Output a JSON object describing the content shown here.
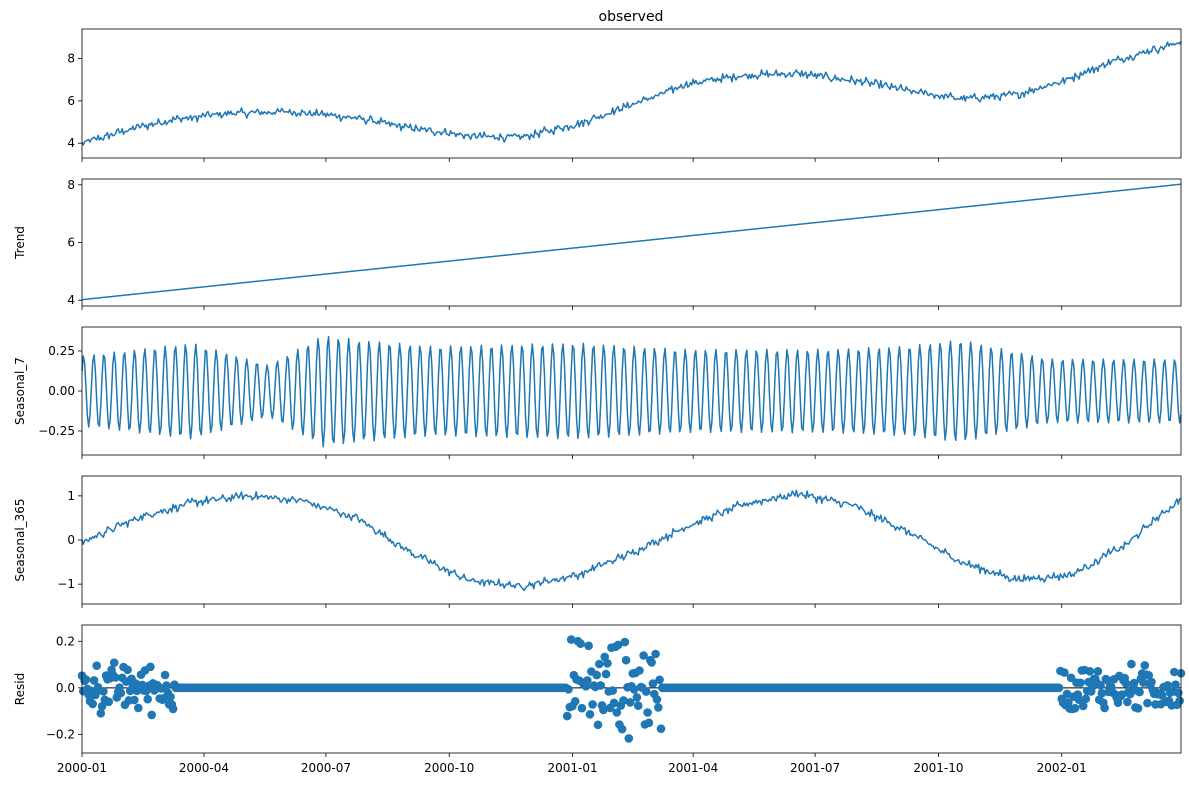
{
  "figure_title": "observed",
  "chart_data": [
    {
      "type": "line",
      "panel": "observed",
      "title": "observed",
      "ylabel": "",
      "ylim": [
        3.3,
        9.4
      ],
      "yticks": [
        4,
        6,
        8
      ],
      "color": "#1f77b4",
      "series": [
        {
          "x_start": "2000-01-01",
          "x_end": "2002-03-31",
          "keypoints": [
            [
              0.0,
              4.0
            ],
            [
              0.04,
              4.6
            ],
            [
              0.08,
              5.1
            ],
            [
              0.13,
              5.4
            ],
            [
              0.19,
              5.5
            ],
            [
              0.25,
              5.2
            ],
            [
              0.3,
              4.7
            ],
            [
              0.36,
              4.3
            ],
            [
              0.4,
              4.3
            ],
            [
              0.45,
              4.9
            ],
            [
              0.5,
              5.8
            ],
            [
              0.55,
              6.8
            ],
            [
              0.6,
              7.2
            ],
            [
              0.65,
              7.3
            ],
            [
              0.71,
              6.9
            ],
            [
              0.76,
              6.4
            ],
            [
              0.8,
              6.1
            ],
            [
              0.85,
              6.3
            ],
            [
              0.89,
              6.9
            ],
            [
              0.94,
              7.9
            ],
            [
              1.0,
              8.8
            ]
          ],
          "noise": 0.25
        }
      ]
    },
    {
      "type": "line",
      "panel": "trend",
      "ylabel": "Trend",
      "ylim": [
        3.8,
        8.2
      ],
      "yticks": [
        4,
        6,
        8
      ],
      "color": "#1f77b4",
      "series": [
        {
          "x_start": "2000-01-01",
          "x_end": "2002-03-31",
          "keypoints": [
            [
              0.0,
              4.02
            ],
            [
              1.0,
              8.02
            ]
          ],
          "noise": 0
        }
      ]
    },
    {
      "type": "line",
      "panel": "seasonal_7",
      "ylabel": "Seasonal_7",
      "ylim": [
        -0.4,
        0.4
      ],
      "yticks": [
        0.25,
        0.0,
        -0.25
      ],
      "ytick_labels": [
        "0.25",
        "0.00",
        "−0.25"
      ],
      "color": "#1f77b4",
      "period_days": 7,
      "amplitude_keypoints": [
        [
          0.0,
          0.22
        ],
        [
          0.1,
          0.3
        ],
        [
          0.17,
          0.16
        ],
        [
          0.22,
          0.35
        ],
        [
          0.25,
          0.32
        ],
        [
          0.32,
          0.28
        ],
        [
          0.45,
          0.3
        ],
        [
          0.55,
          0.26
        ],
        [
          0.68,
          0.26
        ],
        [
          0.75,
          0.28
        ],
        [
          0.8,
          0.32
        ],
        [
          0.88,
          0.2
        ],
        [
          1.0,
          0.2
        ]
      ],
      "series": [
        {
          "x_start": "2000-01-01",
          "x_end": "2002-03-31"
        }
      ]
    },
    {
      "type": "line",
      "panel": "seasonal_365",
      "ylabel": "Seasonal_365",
      "ylim": [
        -1.45,
        1.45
      ],
      "yticks": [
        1,
        0,
        -1
      ],
      "ytick_labels": [
        "1",
        "0",
        "−1"
      ],
      "color": "#1f77b4",
      "series": [
        {
          "x_start": "2000-01-01",
          "x_end": "2002-03-31",
          "keypoints": [
            [
              0.0,
              -0.05
            ],
            [
              0.05,
              0.5
            ],
            [
              0.1,
              0.85
            ],
            [
              0.15,
              1.0
            ],
            [
              0.2,
              0.9
            ],
            [
              0.25,
              0.5
            ],
            [
              0.3,
              -0.3
            ],
            [
              0.35,
              -0.9
            ],
            [
              0.4,
              -1.05
            ],
            [
              0.45,
              -0.8
            ],
            [
              0.5,
              -0.3
            ],
            [
              0.55,
              0.3
            ],
            [
              0.6,
              0.8
            ],
            [
              0.65,
              1.05
            ],
            [
              0.7,
              0.8
            ],
            [
              0.75,
              0.2
            ],
            [
              0.8,
              -0.5
            ],
            [
              0.85,
              -0.9
            ],
            [
              0.9,
              -0.8
            ],
            [
              0.95,
              -0.1
            ],
            [
              1.0,
              0.95
            ]
          ],
          "noise": 0.12
        }
      ]
    },
    {
      "type": "scatter",
      "panel": "resid",
      "ylabel": "Resid",
      "ylim": [
        -0.28,
        0.27
      ],
      "yticks": [
        0.2,
        0.0,
        -0.2
      ],
      "ytick_labels": [
        "0.2",
        "0.0",
        "−0.2"
      ],
      "color": "#1f77b4",
      "baseline": 0,
      "noisy_windows": [
        {
          "from": "2000-01-01",
          "to": "2000-03-10",
          "spread": 0.13
        },
        {
          "from": "2000-12-28",
          "to": "2001-03-08",
          "spread": 0.25
        },
        {
          "from": "2001-12-31",
          "to": "2002-03-31",
          "spread": 0.12
        }
      ],
      "series": [
        {
          "x_start": "2000-01-01",
          "x_end": "2002-03-31"
        }
      ]
    }
  ],
  "x_axis": {
    "tick_labels": [
      "2000-01",
      "2000-04",
      "2000-07",
      "2000-10",
      "2001-01",
      "2001-04",
      "2001-07",
      "2001-10",
      "2002-01"
    ],
    "tick_dates": [
      "2000-01-01",
      "2000-04-01",
      "2000-07-01",
      "2000-10-01",
      "2001-01-01",
      "2001-04-01",
      "2001-07-01",
      "2001-10-01",
      "2002-01-01"
    ]
  }
}
